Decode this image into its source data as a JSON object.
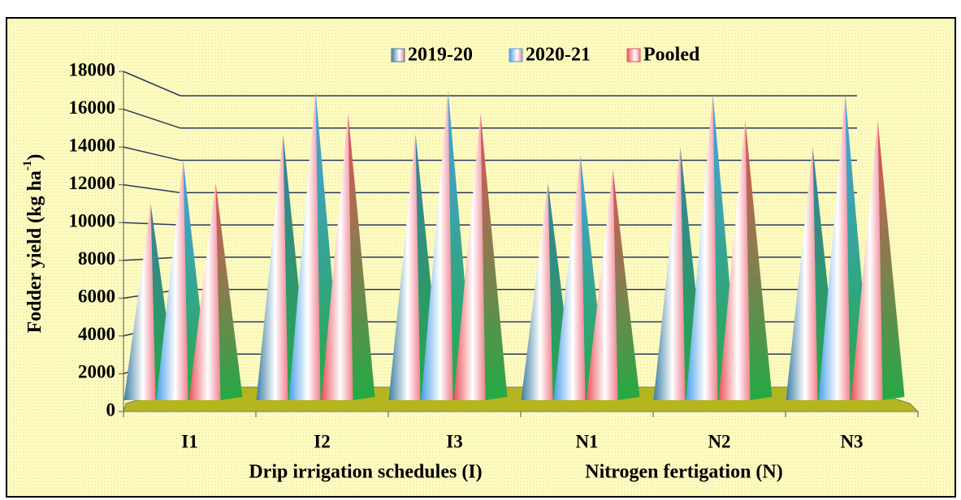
{
  "chart_data": {
    "type": "bar",
    "y_label": {
      "main": "Fodder yield (kg ha",
      "sup": "-1",
      "end": ")"
    },
    "x_labels": [
      "Drip irrigation schedules (I)",
      "Nitrogen fertigation (N)"
    ],
    "categories": [
      "I1",
      "I2",
      "I3",
      "N1",
      "N2",
      "N3"
    ],
    "series": [
      {
        "name": "2019-20",
        "color": "#3b7ea1",
        "values": [
          11000,
          14700,
          14700,
          12100,
          14000,
          14000
        ]
      },
      {
        "name": "2020-21",
        "color": "#4a9fe8",
        "values": [
          13300,
          17000,
          17000,
          13600,
          16800,
          16800
        ]
      },
      {
        "name": "Pooled",
        "color": "#e8505a",
        "values": [
          12100,
          15800,
          15800,
          12800,
          15400,
          15400
        ]
      }
    ],
    "ylim": [
      0,
      18000
    ],
    "yticks": [
      0,
      2000,
      4000,
      6000,
      8000,
      10000,
      12000,
      14000,
      16000,
      18000
    ],
    "grid": true
  }
}
